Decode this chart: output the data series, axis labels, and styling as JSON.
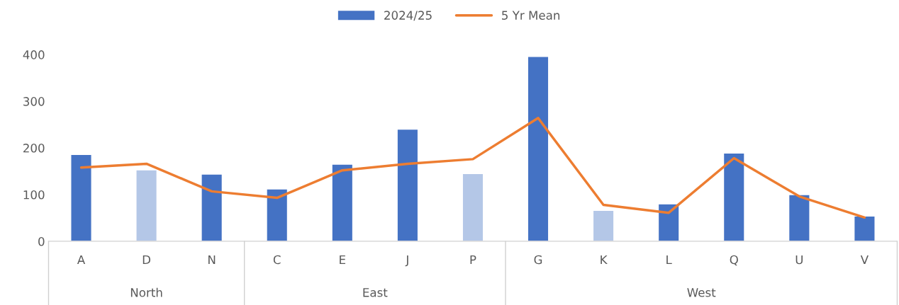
{
  "chart_data": {
    "type": "bar",
    "categories": [
      "A",
      "D",
      "N",
      "C",
      "E",
      "J",
      "P",
      "G",
      "K",
      "L",
      "Q",
      "U",
      "V"
    ],
    "series": [
      {
        "name": "2024/25",
        "color": "#4472c4",
        "colors": [
          "#4472c4",
          "#b4c7e7",
          "#4472c4",
          "#4472c4",
          "#4472c4",
          "#4472c4",
          "#b4c7e7",
          "#4472c4",
          "#b4c7e7",
          "#4472c4",
          "#4472c4",
          "#4472c4",
          "#4472c4"
        ],
        "values": [
          186,
          153,
          144,
          112,
          165,
          240,
          145,
          396,
          66,
          80,
          189,
          100,
          54
        ]
      },
      {
        "name": "5 Yr Mean",
        "type": "line",
        "color": "#ed7d31",
        "values": [
          158,
          166,
          107,
          93,
          152,
          166,
          176,
          264,
          78,
          61,
          178,
          96,
          51
        ]
      }
    ],
    "annotations": [
      "North",
      "East",
      "West"
    ],
    "ylim": [
      0,
      400
    ],
    "yticks": [
      0,
      100,
      200,
      300,
      400
    ],
    "grid": false,
    "legend": "top"
  }
}
